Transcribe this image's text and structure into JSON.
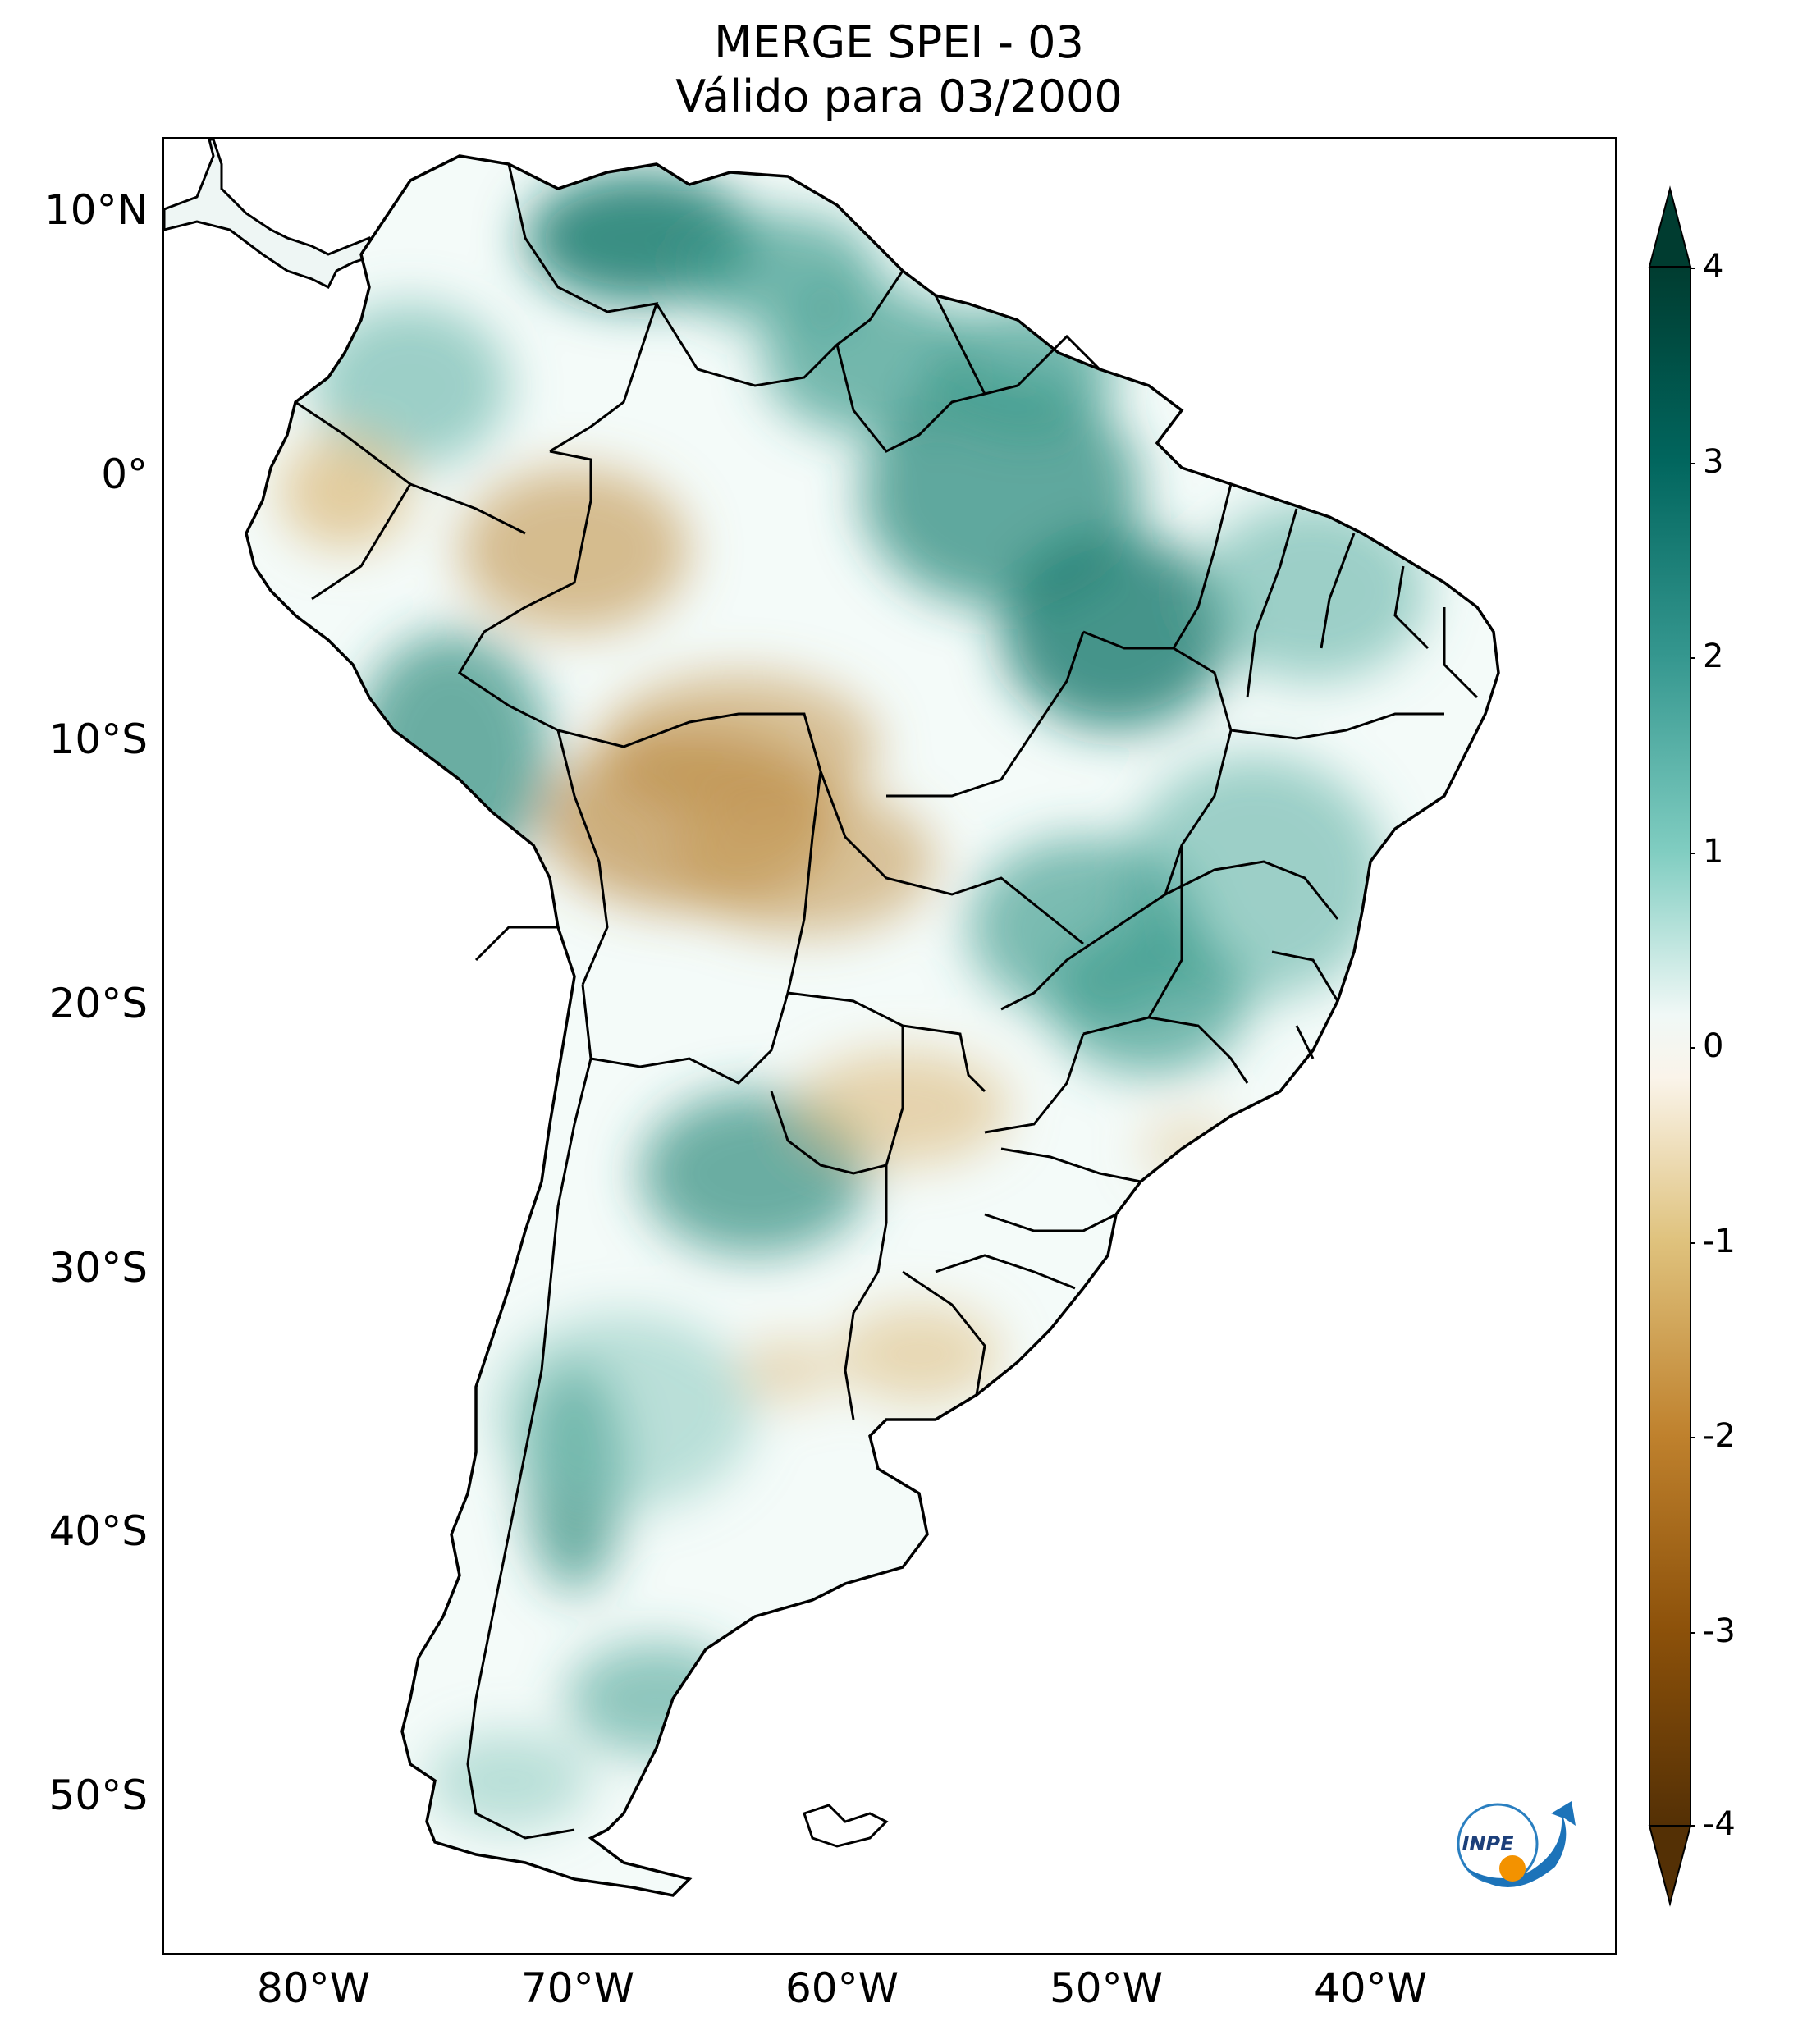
{
  "title_line1": "MERGE   SPEI - 03",
  "title_line2": "Válido para 03/2000",
  "lat_labels": [
    "10°N",
    "0°",
    "10°S",
    "20°S",
    "30°S",
    "40°S",
    "50°S"
  ],
  "lon_labels": [
    "80°W",
    "70°W",
    "60°W",
    "50°W",
    "40°W"
  ],
  "colorbar": {
    "ticks": [
      "4",
      "3",
      "2",
      "1",
      "0",
      "-1",
      "-2",
      "-3",
      "-4"
    ],
    "colormap": "BrBG",
    "range": [
      -4,
      4
    ],
    "extend": "both"
  },
  "map": {
    "region": "South America",
    "lon_range": [
      -85,
      -30
    ],
    "lat_range": [
      -56,
      13
    ],
    "wet_color": "#1b7b6e",
    "dry_color": "#b9853a"
  },
  "logo_text": "INPE"
}
